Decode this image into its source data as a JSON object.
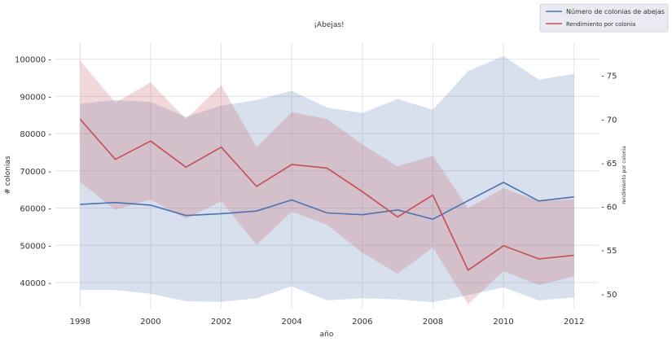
{
  "chart_data": {
    "type": "line",
    "title": "¡Abejas!",
    "xlabel": "año",
    "ylabel_left": "# colonias",
    "ylabel_right": "rendimiento por colonia",
    "x": [
      1998,
      1999,
      2000,
      2001,
      2002,
      2003,
      2004,
      2005,
      2006,
      2007,
      2008,
      2009,
      2010,
      2011,
      2012
    ],
    "xlim": [
      1997.3,
      2012.7
    ],
    "x_ticks": [
      "1998",
      "2000",
      "2002",
      "2004",
      "2006",
      "2008",
      "2010",
      "2012"
    ],
    "ylim_left": [
      33000,
      104500
    ],
    "y_ticks_left": [
      "40000",
      "50000",
      "60000",
      "70000",
      "80000",
      "90000",
      "100000"
    ],
    "ylim_right": [
      48.3,
      78.8
    ],
    "y_ticks_right": [
      "50",
      "55",
      "60",
      "65",
      "70",
      "75"
    ],
    "series": [
      {
        "name": "Número de colonias de abejas",
        "axis": "left",
        "color": "#4c72b0",
        "values": [
          61000,
          61500,
          60800,
          58000,
          58500,
          59200,
          62200,
          58700,
          58200,
          59500,
          57000,
          62000,
          66900,
          61900,
          63000
        ],
        "lower": [
          38000,
          38000,
          37000,
          35000,
          34800,
          35800,
          39000,
          35200,
          35800,
          35500,
          34700,
          36600,
          38700,
          35200,
          36000
        ],
        "upper": [
          88000,
          89000,
          88500,
          84500,
          87500,
          89000,
          91500,
          87000,
          85500,
          89300,
          86400,
          96800,
          100800,
          94500,
          96000
        ]
      },
      {
        "name": "Rendimiento por colonia",
        "axis": "right",
        "color": "#c44e52",
        "values": [
          70.0,
          65.4,
          67.5,
          64.5,
          66.8,
          62.3,
          64.8,
          64.4,
          61.7,
          58.8,
          61.3,
          52.7,
          55.5,
          54.0,
          54.4
        ],
        "lower": [
          62.8,
          59.6,
          60.8,
          58.6,
          60.6,
          55.6,
          59.4,
          57.9,
          54.7,
          52.3,
          55.3,
          48.8,
          52.6,
          51.0,
          52.0
        ],
        "upper": [
          76.7,
          71.9,
          74.2,
          70.0,
          73.9,
          66.8,
          70.8,
          70.0,
          67.1,
          64.6,
          65.8,
          59.8,
          62.1,
          60.6,
          60.8
        ]
      }
    ],
    "grid": true,
    "legend": "top-right"
  }
}
